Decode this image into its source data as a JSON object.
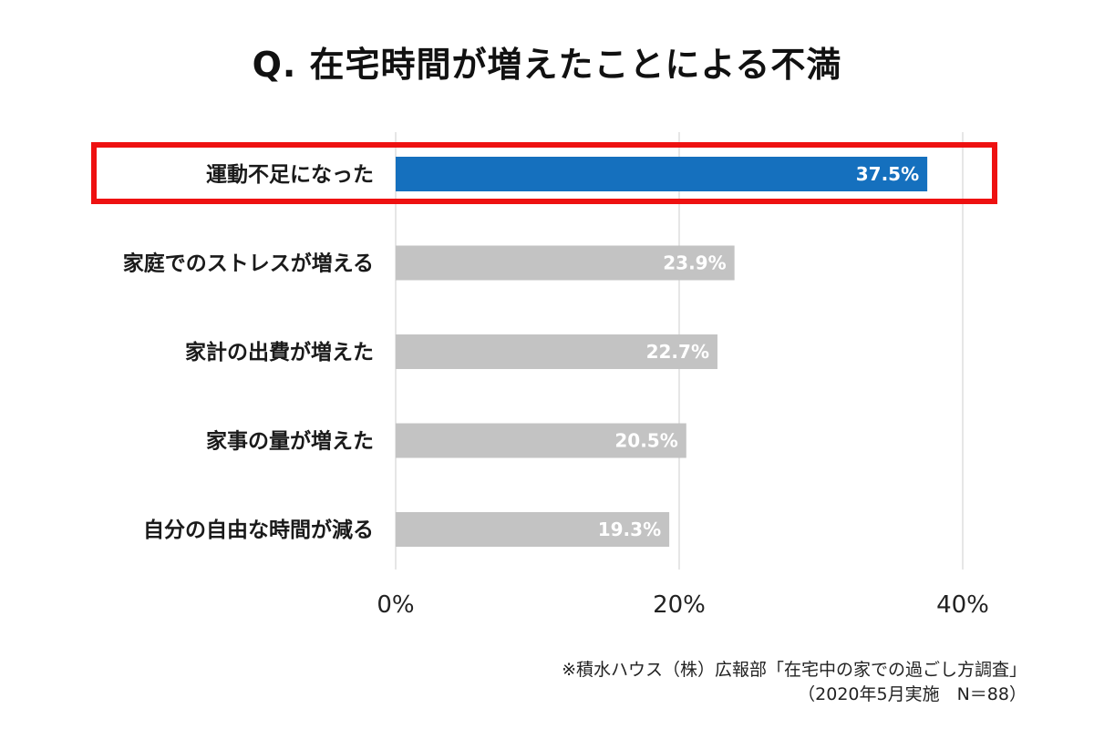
{
  "title": "Q. 在宅時間が増えたことによる不満",
  "chart_data": {
    "type": "bar",
    "orientation": "horizontal",
    "categories": [
      "運動不足になった",
      "家庭でのストレスが増える",
      "家計の出費が増えた",
      "家事の量が増えた",
      "自分の自由な時間が減る"
    ],
    "values": [
      37.5,
      23.9,
      22.7,
      20.5,
      19.3
    ],
    "value_labels": [
      "37.5%",
      "23.9%",
      "22.7%",
      "20.5%",
      "19.3%"
    ],
    "xticks": [
      "0%",
      "20%",
      "40%"
    ],
    "xtick_values": [
      0,
      20,
      40
    ],
    "xlim": [
      0,
      40
    ],
    "grid": true,
    "highlighted_category": "運動不足になった",
    "colors": {
      "highlight": "#1570be",
      "default": "#c3c3c3",
      "highlight_box": "#ee1111"
    }
  },
  "source": {
    "line1": "※積水ハウス（株）広報部「在宅中の家での過ごし方調査」",
    "line2": "（2020年5月実施　N＝88）"
  }
}
